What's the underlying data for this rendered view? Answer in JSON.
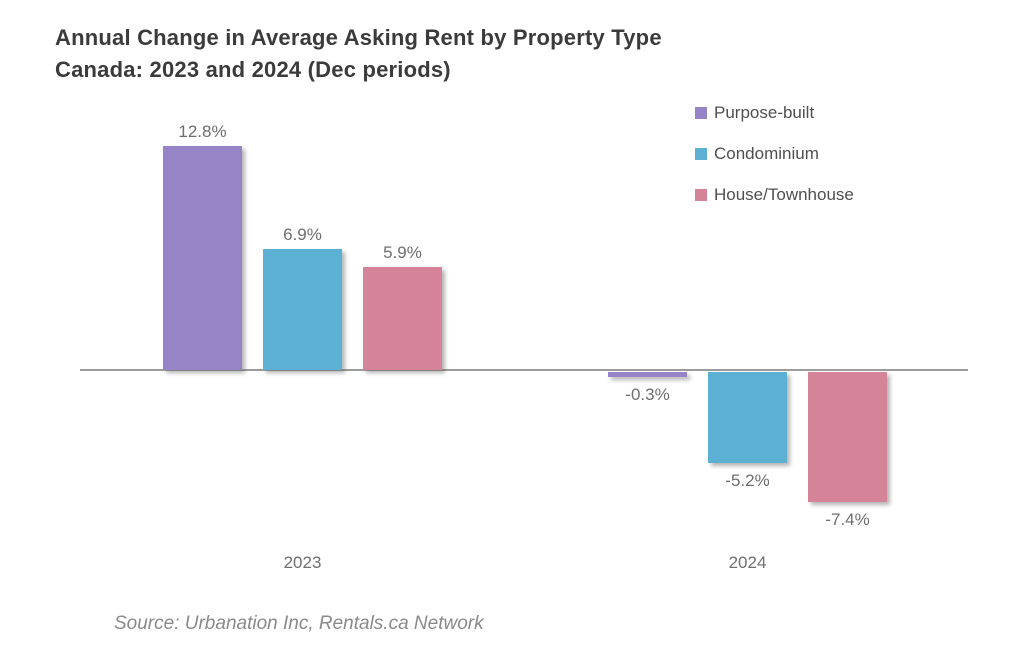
{
  "title": {
    "line1": "Annual Change in Average Asking Rent by Property Type",
    "line2": "Canada: 2023 and 2024 (Dec periods)"
  },
  "chart_data": {
    "type": "bar",
    "title": "Annual Change in Average Asking Rent by Property Type Canada: 2023 and 2024 (Dec periods)",
    "categories": [
      "2023",
      "2024"
    ],
    "series": [
      {
        "name": "Purpose-built",
        "color": "#9784C7",
        "values": [
          12.8,
          -0.3
        ]
      },
      {
        "name": "Condominium",
        "color": "#5BB0D4",
        "values": [
          6.9,
          -5.2
        ]
      },
      {
        "name": "House/Townhouse",
        "color": "#D48398",
        "values": [
          5.9,
          -7.4
        ]
      }
    ],
    "unit": "%",
    "value_labels": [
      [
        "12.8%",
        "6.9%",
        "5.9%"
      ],
      [
        "-0.3%",
        "-5.2%",
        "-7.4%"
      ]
    ],
    "xlabel": "",
    "ylabel": "",
    "ylim": [
      -8,
      14
    ],
    "baseline": 0,
    "grid": false,
    "legend_position": "top-right"
  },
  "source": {
    "text": "Source: Urbanation Inc, Rentals.ca Network"
  },
  "colors": {
    "background": "#ffffff",
    "title_text": "#3b3b3b",
    "legend_text": "#4f4f4f",
    "value_label_text": "#6e6e6e",
    "category_label_text": "#6e6e6e",
    "axis_line": "#9b9b9b",
    "source_text": "#8a8a8a"
  }
}
